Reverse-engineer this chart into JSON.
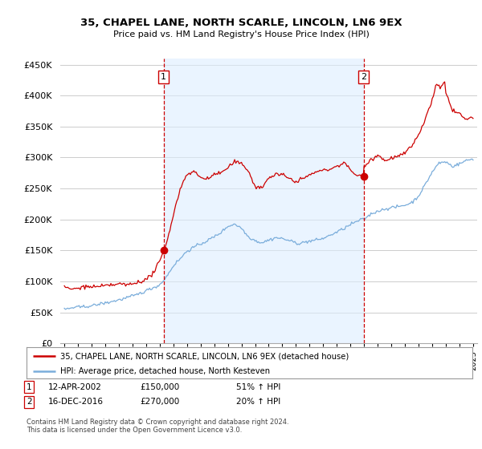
{
  "title": "35, CHAPEL LANE, NORTH SCARLE, LINCOLN, LN6 9EX",
  "subtitle": "Price paid vs. HM Land Registry's House Price Index (HPI)",
  "ylabel_ticks": [
    "£0",
    "£50K",
    "£100K",
    "£150K",
    "£200K",
    "£250K",
    "£300K",
    "£350K",
    "£400K",
    "£450K"
  ],
  "ytick_values": [
    0,
    50000,
    100000,
    150000,
    200000,
    250000,
    300000,
    350000,
    400000,
    450000
  ],
  "ylim": [
    0,
    460000
  ],
  "xlim_start": 1994.7,
  "xlim_end": 2025.3,
  "sale1": {
    "date": 2002.28,
    "price": 150000,
    "label": "1"
  },
  "sale2": {
    "date": 2016.96,
    "price": 270000,
    "label": "2"
  },
  "legend_entry1": "35, CHAPEL LANE, NORTH SCARLE, LINCOLN, LN6 9EX (detached house)",
  "legend_entry2": "HPI: Average price, detached house, North Kesteven",
  "table_entry1": {
    "num": "1",
    "date": "12-APR-2002",
    "price": "£150,000",
    "pct": "51% ↑ HPI"
  },
  "table_entry2": {
    "num": "2",
    "date": "16-DEC-2016",
    "price": "£270,000",
    "pct": "20% ↑ HPI"
  },
  "footnote": "Contains HM Land Registry data © Crown copyright and database right 2024.\nThis data is licensed under the Open Government Licence v3.0.",
  "line_color_red": "#cc0000",
  "line_color_blue": "#7aaddb",
  "shade_color": "#ddeeff",
  "vline_color": "#cc0000",
  "background_color": "#ffffff",
  "grid_color": "#cccccc"
}
